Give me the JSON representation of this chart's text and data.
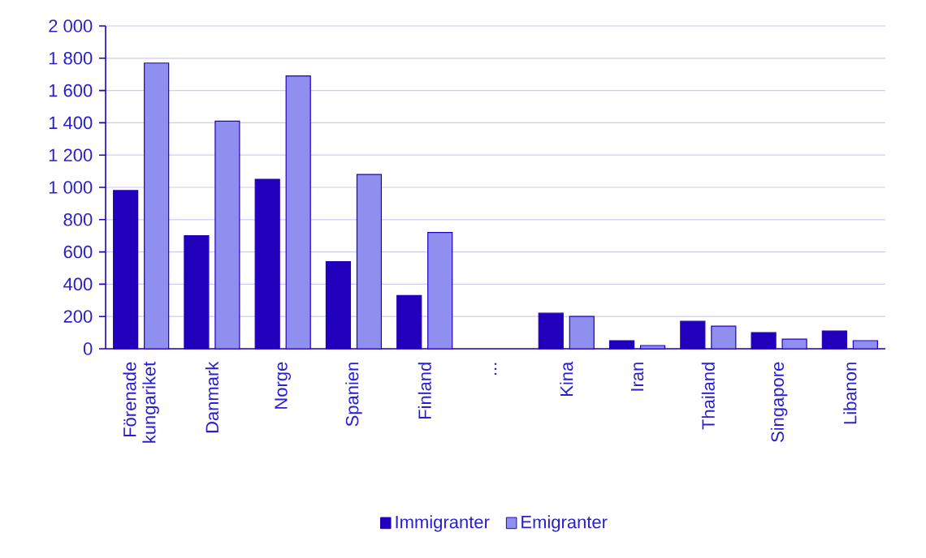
{
  "chart_data": {
    "type": "bar",
    "categories": [
      "Förenade kungariket",
      "Danmark",
      "Norge",
      "Spanien",
      "Finland",
      "...",
      "Kina",
      "Iran",
      "Thailand",
      "Singapore",
      "Libanon"
    ],
    "series": [
      {
        "name": "Immigranter",
        "color": "#2200bb",
        "values": [
          980,
          700,
          1050,
          540,
          330,
          null,
          220,
          50,
          170,
          100,
          110
        ]
      },
      {
        "name": "Emigranter",
        "color": "#8f8ff0",
        "values": [
          1770,
          1410,
          1690,
          1080,
          720,
          null,
          200,
          20,
          140,
          60,
          50
        ]
      }
    ],
    "ylim": [
      0,
      2000
    ],
    "yticks": [
      0,
      200,
      400,
      600,
      800,
      {
        "value": 1000,
        "label": "1 000"
      },
      {
        "value": 1200,
        "label": "1 200"
      },
      {
        "value": 1400,
        "label": "1 400"
      },
      {
        "value": 1600,
        "label": "1 600"
      },
      {
        "value": 1800,
        "label": "1 800"
      },
      {
        "value": 2000,
        "label": "2 000"
      }
    ],
    "grid": "y",
    "legend": "bottom"
  }
}
